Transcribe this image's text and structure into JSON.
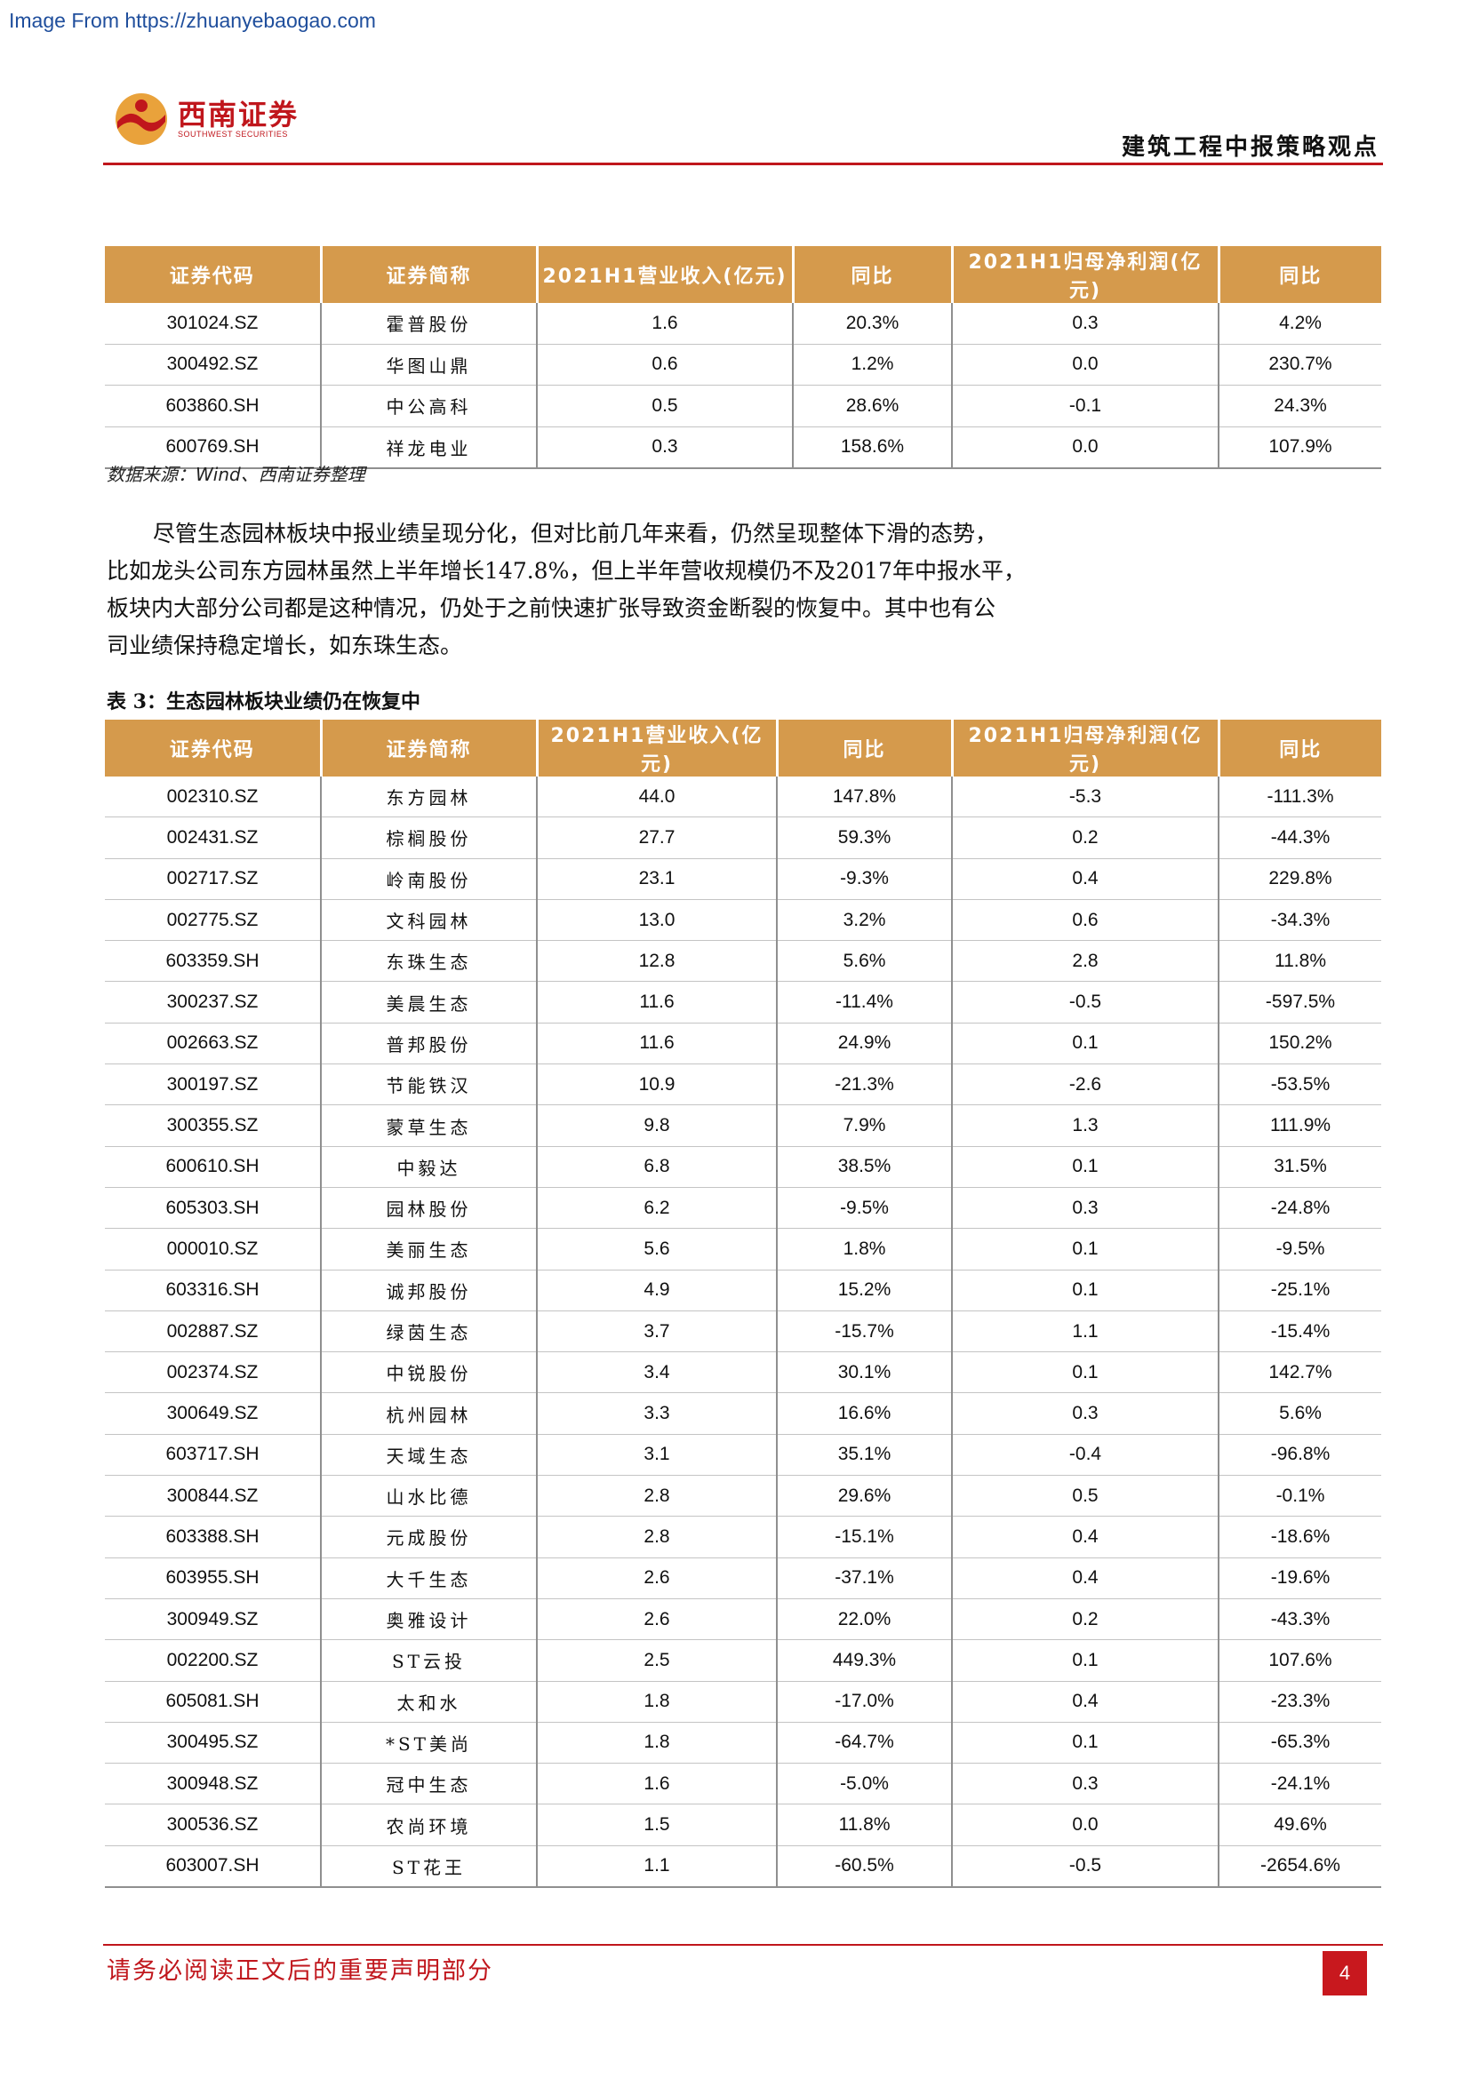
{
  "watermark": "Image From https://zhuanyebaogao.com",
  "logo": {
    "cn": "西南证券",
    "en": "SOUTHWEST SECURITIES"
  },
  "header_title": "建筑工程中报策略观点",
  "table1": {
    "headers": [
      "证券代码",
      "证券简称",
      "2021H1营业收入(亿元)",
      "同比",
      "2021H1归母净利润(亿元)",
      "同比"
    ],
    "rows": [
      [
        "301024.SZ",
        "霍普股份",
        "1.6",
        "20.3%",
        "0.3",
        "4.2%"
      ],
      [
        "300492.SZ",
        "华图山鼎",
        "0.6",
        "1.2%",
        "0.0",
        "230.7%"
      ],
      [
        "603860.SH",
        "中公高科",
        "0.5",
        "28.6%",
        "-0.1",
        "24.3%"
      ],
      [
        "600769.SH",
        "祥龙电业",
        "0.3",
        "158.6%",
        "0.0",
        "107.9%"
      ]
    ]
  },
  "source": "数据来源：Wind、西南证券整理",
  "paragraph": [
    "尽管生态园林板块中报业绩呈现分化，但对比前几年来看，仍然呈现整体下滑的态势，",
    "比如龙头公司东方园林虽然上半年增长147.8%，但上半年营收规模仍不及2017年中报水平，",
    "板块内大部分公司都是这种情况，仍处于之前快速扩张导致资金断裂的恢复中。其中也有公",
    "司业绩保持稳定增长，如东珠生态。"
  ],
  "table2": {
    "caption": "表 3：生态园林板块业绩仍在恢复中",
    "headers": [
      "证券代码",
      "证券简称",
      "2021H1营业收入(亿元)",
      "同比",
      "2021H1归母净利润(亿元)",
      "同比"
    ],
    "rows": [
      [
        "002310.SZ",
        "东方园林",
        "44.0",
        "147.8%",
        "-5.3",
        "-111.3%"
      ],
      [
        "002431.SZ",
        "棕榈股份",
        "27.7",
        "59.3%",
        "0.2",
        "-44.3%"
      ],
      [
        "002717.SZ",
        "岭南股份",
        "23.1",
        "-9.3%",
        "0.4",
        "229.8%"
      ],
      [
        "002775.SZ",
        "文科园林",
        "13.0",
        "3.2%",
        "0.6",
        "-34.3%"
      ],
      [
        "603359.SH",
        "东珠生态",
        "12.8",
        "5.6%",
        "2.8",
        "11.8%"
      ],
      [
        "300237.SZ",
        "美晨生态",
        "11.6",
        "-11.4%",
        "-0.5",
        "-597.5%"
      ],
      [
        "002663.SZ",
        "普邦股份",
        "11.6",
        "24.9%",
        "0.1",
        "150.2%"
      ],
      [
        "300197.SZ",
        "节能铁汉",
        "10.9",
        "-21.3%",
        "-2.6",
        "-53.5%"
      ],
      [
        "300355.SZ",
        "蒙草生态",
        "9.8",
        "7.9%",
        "1.3",
        "111.9%"
      ],
      [
        "600610.SH",
        "中毅达",
        "6.8",
        "38.5%",
        "0.1",
        "31.5%"
      ],
      [
        "605303.SH",
        "园林股份",
        "6.2",
        "-9.5%",
        "0.3",
        "-24.8%"
      ],
      [
        "000010.SZ",
        "美丽生态",
        "5.6",
        "1.8%",
        "0.1",
        "-9.5%"
      ],
      [
        "603316.SH",
        "诚邦股份",
        "4.9",
        "15.2%",
        "0.1",
        "-25.1%"
      ],
      [
        "002887.SZ",
        "绿茵生态",
        "3.7",
        "-15.7%",
        "1.1",
        "-15.4%"
      ],
      [
        "002374.SZ",
        "中锐股份",
        "3.4",
        "30.1%",
        "0.1",
        "142.7%"
      ],
      [
        "300649.SZ",
        "杭州园林",
        "3.3",
        "16.6%",
        "0.3",
        "5.6%"
      ],
      [
        "603717.SH",
        "天域生态",
        "3.1",
        "35.1%",
        "-0.4",
        "-96.8%"
      ],
      [
        "300844.SZ",
        "山水比德",
        "2.8",
        "29.6%",
        "0.5",
        "-0.1%"
      ],
      [
        "603388.SH",
        "元成股份",
        "2.8",
        "-15.1%",
        "0.4",
        "-18.6%"
      ],
      [
        "603955.SH",
        "大千生态",
        "2.6",
        "-37.1%",
        "0.4",
        "-19.6%"
      ],
      [
        "300949.SZ",
        "奥雅设计",
        "2.6",
        "22.0%",
        "0.2",
        "-43.3%"
      ],
      [
        "002200.SZ",
        "ST云投",
        "2.5",
        "449.3%",
        "0.1",
        "107.6%"
      ],
      [
        "605081.SH",
        "太和水",
        "1.8",
        "-17.0%",
        "0.4",
        "-23.3%"
      ],
      [
        "300495.SZ",
        "*ST美尚",
        "1.8",
        "-64.7%",
        "0.1",
        "-65.3%"
      ],
      [
        "300948.SZ",
        "冠中生态",
        "1.6",
        "-5.0%",
        "0.3",
        "-24.1%"
      ],
      [
        "300536.SZ",
        "农尚环境",
        "1.5",
        "11.8%",
        "0.0",
        "49.6%"
      ],
      [
        "603007.SH",
        "ST花王",
        "1.1",
        "-60.5%",
        "-0.5",
        "-2654.6%"
      ]
    ]
  },
  "footer_text": "请务必阅读正文后的重要声明部分",
  "page_number": "4",
  "colors": {
    "accent_red": "#c0161c",
    "table_header": "#d59a4c"
  }
}
